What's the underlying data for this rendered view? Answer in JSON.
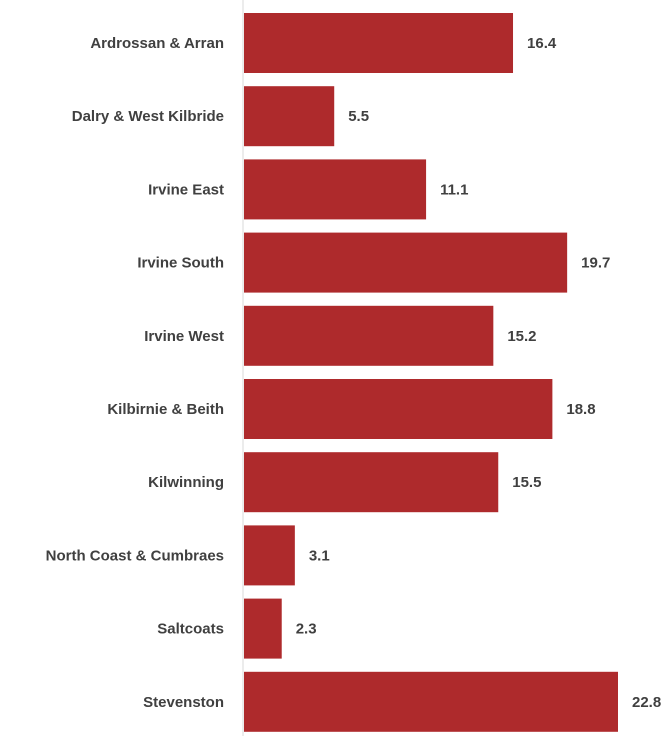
{
  "chart_data": {
    "type": "bar",
    "orientation": "horizontal",
    "categories": [
      "Ardrossan & Arran",
      "Dalry & West Kilbride",
      "Irvine East",
      "Irvine South",
      "Irvine West",
      "Kilbirnie & Beith",
      "Kilwinning",
      "North Coast & Cumbraes",
      "Saltcoats",
      "Stevenston"
    ],
    "values": [
      16.4,
      5.5,
      11.1,
      19.7,
      15.2,
      18.8,
      15.5,
      3.1,
      2.3,
      22.8
    ],
    "value_labels": [
      "16.4",
      "5.5",
      "11.1",
      "19.7",
      "15.2",
      "18.8",
      "15.5",
      "3.1",
      "2.3",
      "22.8"
    ],
    "title": "",
    "xlabel": "",
    "ylabel": "",
    "xlim": [
      0,
      22.8
    ],
    "grid": false,
    "legend": "none",
    "colors": {
      "bar": "#ae2a2c",
      "label": "#404040",
      "axis": "#d9d9d9"
    }
  }
}
